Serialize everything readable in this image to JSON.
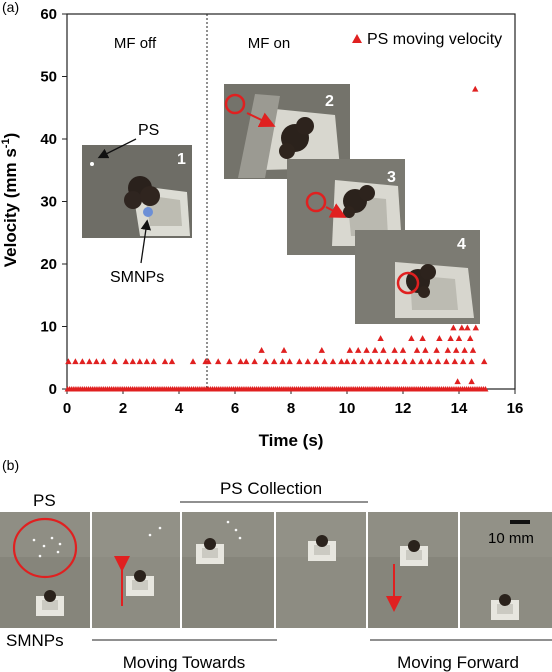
{
  "figure": {
    "panel_a_label": "(a)",
    "panel_b_label": "(b)"
  },
  "chart_data": {
    "type": "scatter",
    "xlabel": "Time (s)",
    "ylabel": "Velocity (mm s",
    "ylabel_superscript": "-1",
    "ylabel_close": ")",
    "xlim": [
      0,
      16
    ],
    "ylim": [
      0,
      60
    ],
    "x_ticks": [
      "0",
      "2",
      "4",
      "6",
      "8",
      "10",
      "12",
      "14",
      "16"
    ],
    "y_ticks": [
      "0",
      "10",
      "20",
      "30",
      "40",
      "50",
      "60"
    ],
    "grid": false,
    "legend_position": "top-right",
    "marker_color": "#e02020",
    "divider_x": 5,
    "region_labels": [
      "MF off",
      "MF on"
    ],
    "inset_numbers": [
      "1",
      "2",
      "3",
      "4"
    ],
    "inset_labels": {
      "ps": "PS",
      "smnps": "SMNPs"
    },
    "series": [
      {
        "name": "PS moving velocity",
        "points": [
          [
            0.05,
            4.4
          ],
          [
            0.3,
            4.4
          ],
          [
            0.55,
            4.4
          ],
          [
            0.8,
            4.4
          ],
          [
            1.05,
            4.4
          ],
          [
            1.3,
            4.4
          ],
          [
            1.7,
            4.4
          ],
          [
            2.1,
            4.4
          ],
          [
            2.35,
            4.4
          ],
          [
            2.6,
            4.4
          ],
          [
            2.85,
            4.4
          ],
          [
            3.1,
            4.4
          ],
          [
            3.5,
            4.4
          ],
          [
            3.75,
            4.4
          ],
          [
            4.5,
            4.4
          ],
          [
            4.95,
            4.4
          ],
          [
            5.05,
            4.4
          ],
          [
            5.4,
            4.4
          ],
          [
            5.8,
            4.4
          ],
          [
            6.2,
            4.4
          ],
          [
            6.4,
            4.4
          ],
          [
            6.7,
            4.4
          ],
          [
            6.95,
            6.2
          ],
          [
            7.1,
            4.4
          ],
          [
            7.4,
            4.4
          ],
          [
            7.7,
            4.4
          ],
          [
            7.95,
            4.4
          ],
          [
            8.3,
            4.4
          ],
          [
            8.6,
            4.4
          ],
          [
            8.9,
            4.4
          ],
          [
            9.2,
            4.4
          ],
          [
            9.5,
            4.4
          ],
          [
            9.8,
            4.4
          ],
          [
            10.0,
            4.4
          ],
          [
            7.75,
            6.2
          ],
          [
            9.1,
            6.2
          ],
          [
            10.1,
            6.2
          ],
          [
            10.4,
            6.2
          ],
          [
            10.7,
            6.2
          ],
          [
            11.0,
            6.2
          ],
          [
            11.3,
            6.2
          ],
          [
            11.7,
            6.2
          ],
          [
            12.0,
            6.2
          ],
          [
            12.5,
            6.2
          ],
          [
            12.8,
            6.2
          ],
          [
            13.2,
            6.2
          ],
          [
            13.6,
            6.2
          ],
          [
            13.9,
            6.2
          ],
          [
            14.2,
            6.2
          ],
          [
            14.5,
            6.2
          ],
          [
            10.25,
            4.4
          ],
          [
            10.55,
            4.4
          ],
          [
            10.85,
            4.4
          ],
          [
            11.15,
            4.4
          ],
          [
            11.45,
            4.4
          ],
          [
            11.75,
            4.4
          ],
          [
            12.05,
            4.4
          ],
          [
            12.35,
            4.4
          ],
          [
            12.65,
            4.4
          ],
          [
            12.95,
            4.4
          ],
          [
            13.25,
            4.4
          ],
          [
            13.55,
            4.4
          ],
          [
            13.85,
            4.4
          ],
          [
            14.15,
            4.4
          ],
          [
            14.45,
            4.4
          ],
          [
            14.9,
            4.4
          ],
          [
            11.2,
            8.1
          ],
          [
            12.3,
            8.1
          ],
          [
            12.7,
            8.1
          ],
          [
            13.3,
            8.1
          ],
          [
            13.7,
            8.1
          ],
          [
            14.0,
            8.1
          ],
          [
            14.4,
            8.1
          ],
          [
            13.8,
            9.8
          ],
          [
            14.1,
            9.8
          ],
          [
            14.3,
            9.8
          ],
          [
            14.6,
            9.8
          ],
          [
            14.25,
            16.3
          ],
          [
            14.35,
            19.4
          ],
          [
            14.55,
            17.8
          ],
          [
            14.58,
            48.0
          ],
          [
            13.95,
            1.2
          ],
          [
            14.45,
            1.2
          ]
        ]
      }
    ]
  },
  "panel_b": {
    "label_ps": "PS",
    "label_smnps": "SMNPs",
    "label_collection": "PS Collection",
    "label_towards": "Moving Towards",
    "label_forward": "Moving Forward",
    "scale_bar": "10 mm"
  }
}
